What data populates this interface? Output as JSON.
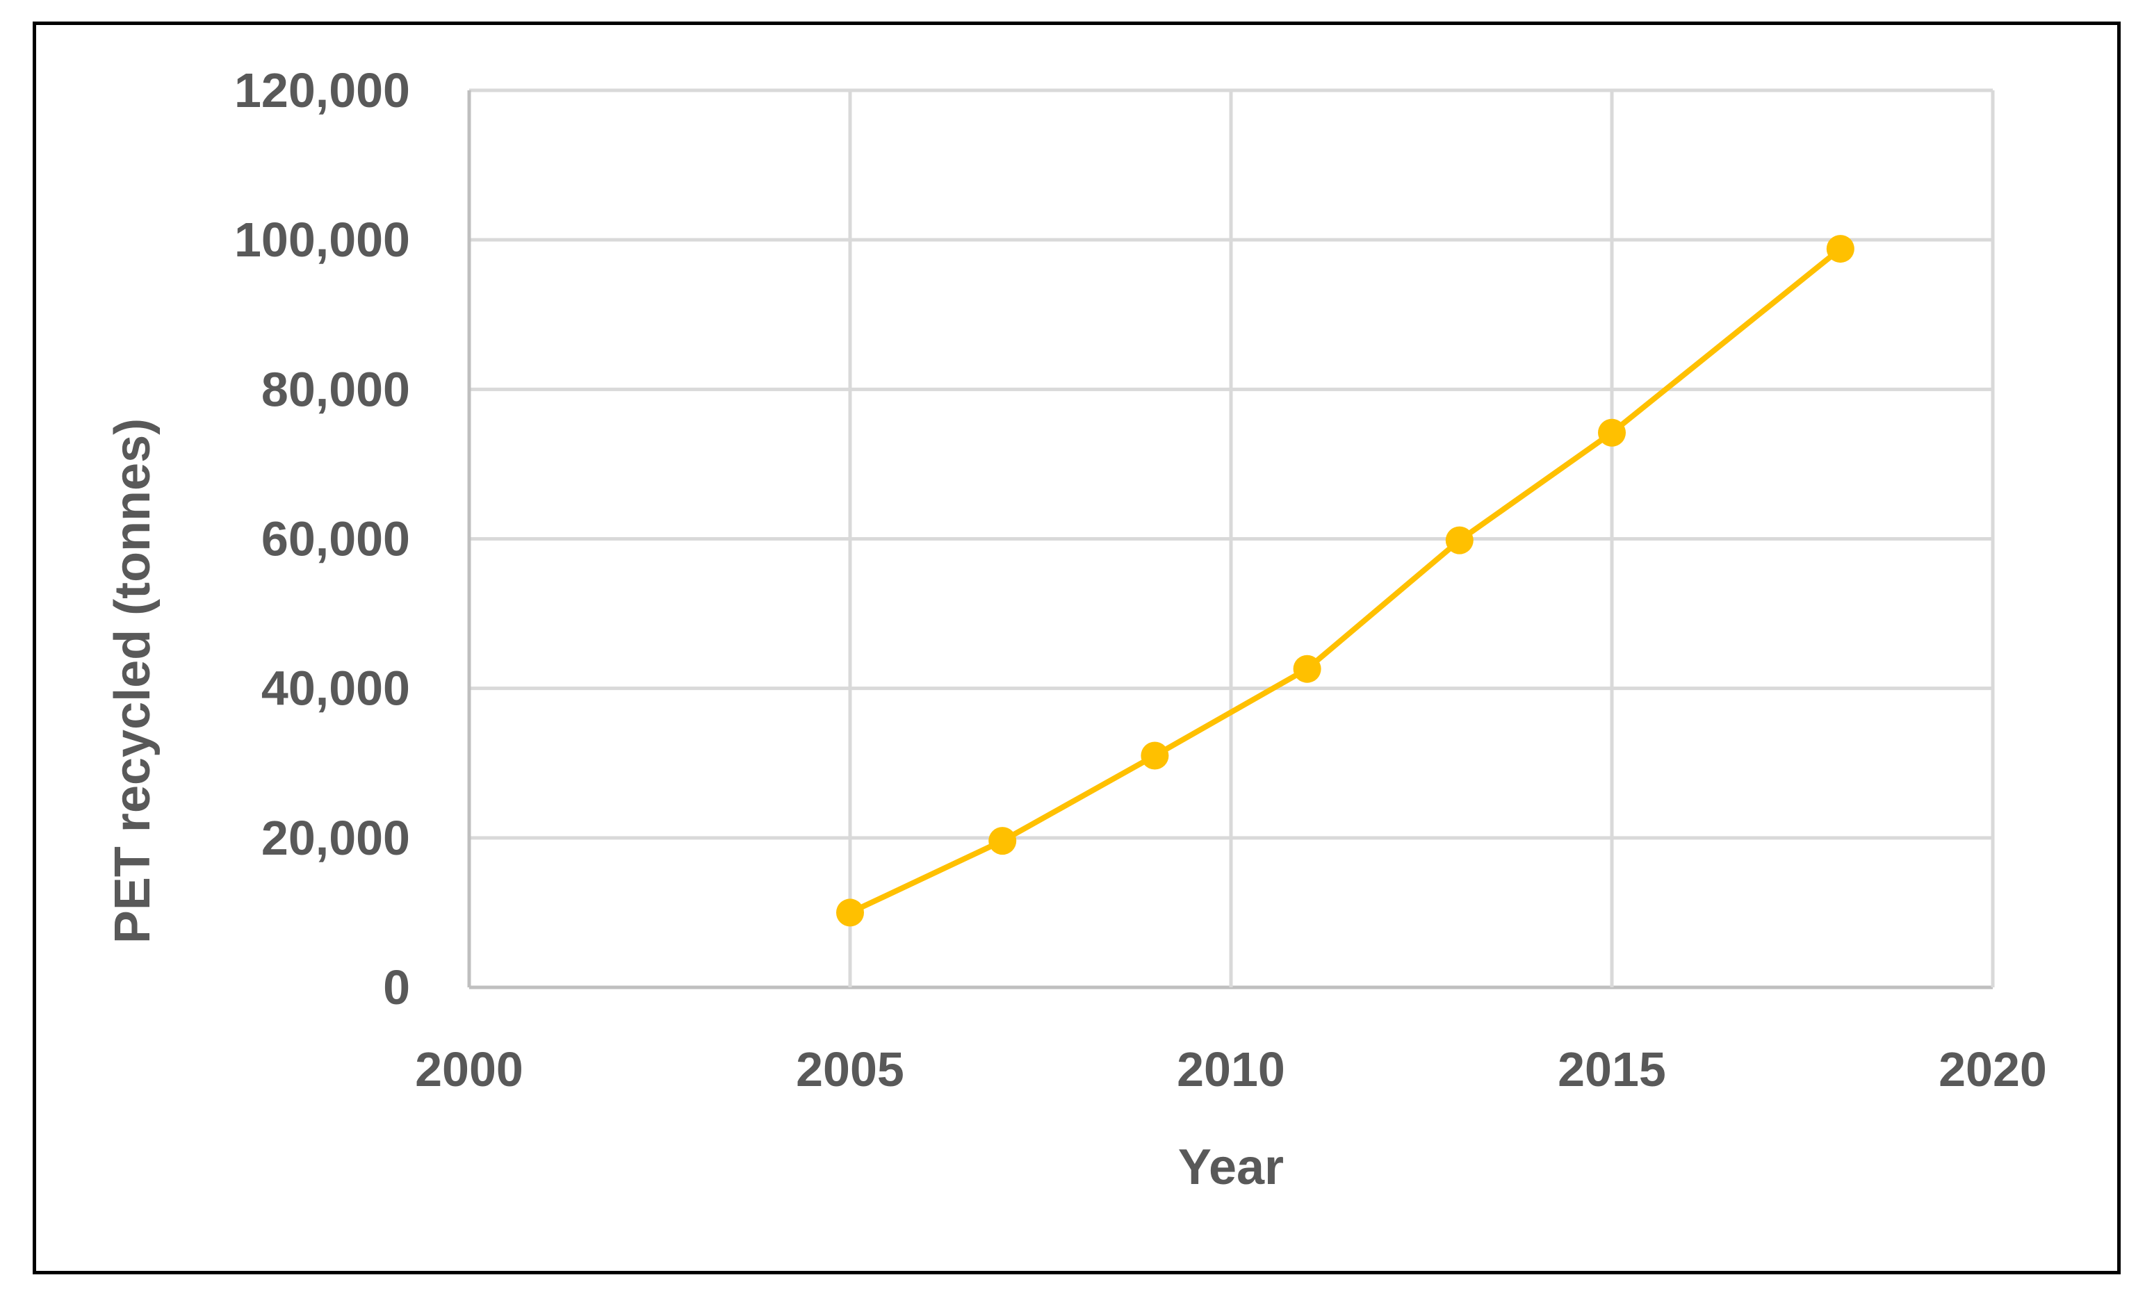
{
  "chart_data": {
    "type": "line",
    "title": "",
    "xlabel": "Year",
    "ylabel": "PET recycled (tonnes)",
    "xlim": [
      2000,
      2020
    ],
    "ylim": [
      0,
      120000
    ],
    "x_ticks": [
      "2000",
      "2005",
      "2010",
      "2015",
      "2020"
    ],
    "y_ticks": [
      "0",
      "20,000",
      "40,000",
      "60,000",
      "80,000",
      "100,000",
      "120,000"
    ],
    "grid": true,
    "legend": "none",
    "series": [
      {
        "color": "#FFC000",
        "x": [
          2005,
          2007,
          2009,
          2011,
          2013,
          2015,
          2018
        ],
        "y": [
          10000,
          19600,
          31000,
          42600,
          59800,
          74200,
          98800
        ]
      }
    ]
  }
}
